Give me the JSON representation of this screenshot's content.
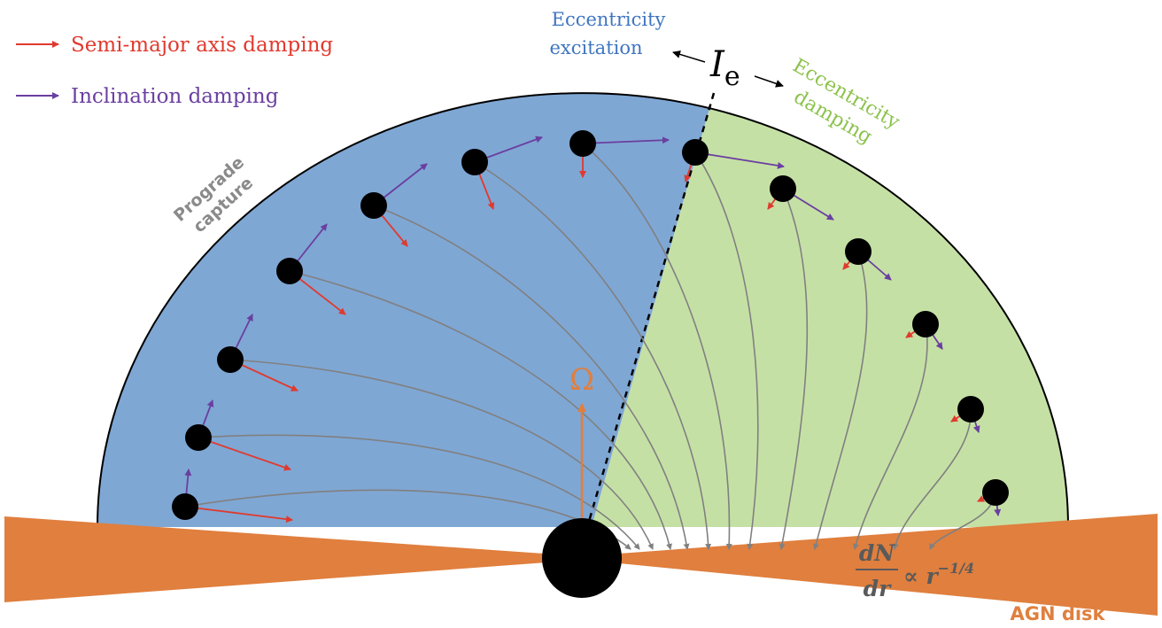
{
  "legend": {
    "semi_major_label": "Semi-major axis damping",
    "inclination_label": "Inclination damping"
  },
  "regions": {
    "excitation_line1": "Eccentricity",
    "excitation_line2": "excitation",
    "damping_line1": "Eccentricity",
    "damping_line2": "damping",
    "critical_symbol": "I",
    "critical_subscript": "e",
    "prograde_line1": "Prograde",
    "prograde_line2": "capture"
  },
  "center": {
    "omega": "Ω"
  },
  "disk": {
    "label": "AGN disk",
    "formula_numerator": "dN",
    "formula_denominator": "dr",
    "formula_rest": "∝ r",
    "formula_exponent": "−1/4"
  },
  "colors": {
    "excitation_region": "#7fa7d4",
    "damping_region": "#c5e0a5",
    "disk": "#e07f3e",
    "semi_major_arrow": "#e03a2f",
    "inclination_arrow": "#6a3fa0",
    "trajectory": "#808080",
    "excitation_text": "#3f75c0",
    "damping_text": "#8cc24c",
    "prograde_text": "#8a8a8a"
  }
}
